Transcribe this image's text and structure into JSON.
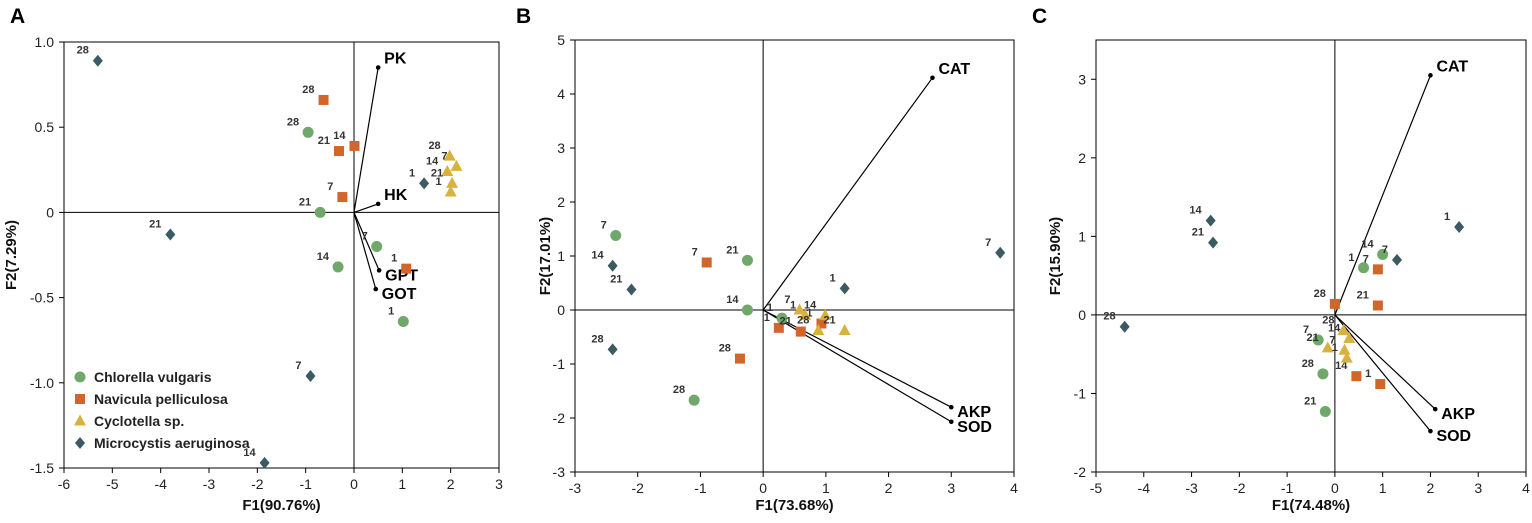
{
  "colors": {
    "Chlorella vulgaris": "#6fa86a",
    "Navicula pelliculosa": "#d2652a",
    "Cyclotella sp.": "#d8b23e",
    "Microcystis aeruginosa": "#3b5a62"
  },
  "legend": [
    {
      "name": "Chlorella vulgaris",
      "marker": "circle"
    },
    {
      "name": "Navicula pelliculosa",
      "marker": "square"
    },
    {
      "name": "Cyclotella sp.",
      "marker": "triangle"
    },
    {
      "name": "Microcystis aeruginosa",
      "marker": "diamond"
    }
  ],
  "chart_data": [
    {
      "panel": "A",
      "type": "scatter",
      "xlabel": "F1(90.76%)",
      "ylabel": "F2(7.29%)",
      "xlim": [
        -6,
        3
      ],
      "ylim": [
        -1.5,
        1.0
      ],
      "xticks": [
        "-6",
        "-5",
        "-4",
        "-3",
        "-2",
        "-1",
        "0",
        "1",
        "2",
        "3"
      ],
      "yticks": [
        "1.0",
        "0.5",
        "0",
        "-0.5",
        "-1.0",
        "-1.5"
      ],
      "vectors": [
        {
          "label": "PK",
          "x": 0.5,
          "y": 0.85
        },
        {
          "label": "HK",
          "x": 0.5,
          "y": 0.05
        },
        {
          "label": "GPT",
          "x": 0.52,
          "y": -0.34
        },
        {
          "label": "GOT",
          "x": 0.45,
          "y": -0.45
        }
      ],
      "series": [
        {
          "name": "Chlorella vulgaris",
          "points": [
            {
              "label": "28",
              "x": -0.95,
              "y": 0.47
            },
            {
              "label": "21",
              "x": -0.7,
              "y": 0.0
            },
            {
              "label": "7",
              "x": 0.47,
              "y": -0.2
            },
            {
              "label": "14",
              "x": -0.33,
              "y": -0.32
            },
            {
              "label": "1",
              "x": 1.02,
              "y": -0.64
            }
          ]
        },
        {
          "name": "Navicula pelliculosa",
          "points": [
            {
              "label": "28",
              "x": -0.63,
              "y": 0.66
            },
            {
              "label": "14",
              "x": 0.01,
              "y": 0.39
            },
            {
              "label": "21",
              "x": -0.31,
              "y": 0.36
            },
            {
              "label": "7",
              "x": -0.24,
              "y": 0.09
            },
            {
              "label": "1",
              "x": 1.08,
              "y": -0.33
            }
          ]
        },
        {
          "name": "Cyclotella sp.",
          "points": [
            {
              "label": "28",
              "x": 1.98,
              "y": 0.33
            },
            {
              "label": "7",
              "x": 2.12,
              "y": 0.27
            },
            {
              "label": "14",
              "x": 1.93,
              "y": 0.24
            },
            {
              "label": "21",
              "x": 2.03,
              "y": 0.17
            },
            {
              "label": "1",
              "x": 2.0,
              "y": 0.12
            }
          ]
        },
        {
          "name": "Microcystis aeruginosa",
          "points": [
            {
              "label": "28",
              "x": -5.3,
              "y": 0.89
            },
            {
              "label": "1",
              "x": 1.45,
              "y": 0.17
            },
            {
              "label": "21",
              "x": -3.8,
              "y": -0.13
            },
            {
              "label": "7",
              "x": -0.9,
              "y": -0.96
            },
            {
              "label": "14",
              "x": -1.85,
              "y": -1.47
            }
          ]
        }
      ]
    },
    {
      "panel": "B",
      "type": "scatter",
      "xlabel": "F1(73.68%)",
      "ylabel": "F2(17.01%)",
      "xlim": [
        -3,
        4
      ],
      "ylim": [
        -3,
        5
      ],
      "xticks": [
        "-3",
        "-2",
        "-1",
        "0",
        "1",
        "2",
        "3",
        "4"
      ],
      "yticks": [
        "5",
        "4",
        "3",
        "2",
        "1",
        "0",
        "-1",
        "-2",
        "-3"
      ],
      "vectors": [
        {
          "label": "CAT",
          "x": 2.7,
          "y": 4.3
        },
        {
          "label": "AKP",
          "x": 3.0,
          "y": -1.8
        },
        {
          "label": "SOD",
          "x": 3.0,
          "y": -2.07
        }
      ],
      "series": [
        {
          "name": "Chlorella vulgaris",
          "points": [
            {
              "label": "7",
              "x": -2.35,
              "y": 1.38
            },
            {
              "label": "21",
              "x": -0.25,
              "y": 0.92
            },
            {
              "label": "14",
              "x": -0.25,
              "y": 0.0
            },
            {
              "label": "1",
              "x": 0.3,
              "y": -0.15
            },
            {
              "label": "28",
              "x": -1.1,
              "y": -1.67
            }
          ]
        },
        {
          "name": "Navicula pelliculosa",
          "points": [
            {
              "label": "7",
              "x": -0.9,
              "y": 0.88
            },
            {
              "label": "1",
              "x": 0.25,
              "y": -0.33
            },
            {
              "label": "21",
              "x": 0.6,
              "y": -0.4
            },
            {
              "label": "1",
              "x": 0.93,
              "y": -0.25
            },
            {
              "label": "28",
              "x": -0.37,
              "y": -0.9
            }
          ]
        },
        {
          "name": "Cyclotella sp.",
          "points": [
            {
              "label": "7",
              "x": 0.58,
              "y": 0.0
            },
            {
              "label": "1",
              "x": 0.67,
              "y": -0.1
            },
            {
              "label": "14",
              "x": 0.99,
              "y": -0.1
            },
            {
              "label": "28",
              "x": 0.88,
              "y": -0.38
            },
            {
              "label": "21",
              "x": 1.3,
              "y": -0.38
            }
          ]
        },
        {
          "name": "Microcystis aeruginosa",
          "points": [
            {
              "label": "14",
              "x": -2.4,
              "y": 0.82
            },
            {
              "label": "21",
              "x": -2.1,
              "y": 0.38
            },
            {
              "label": "1",
              "x": 1.3,
              "y": 0.4
            },
            {
              "label": "7",
              "x": 3.78,
              "y": 1.06
            },
            {
              "label": "28",
              "x": -2.4,
              "y": -0.73
            }
          ]
        }
      ]
    },
    {
      "panel": "C",
      "type": "scatter",
      "xlabel": "F1(74.48%)",
      "ylabel": "F2(15.90%)",
      "xlim": [
        -5,
        4
      ],
      "ylim": [
        -2,
        3.5
      ],
      "xticks": [
        "-5",
        "-4",
        "-3",
        "-2",
        "-1",
        "0",
        "1",
        "2",
        "3",
        "4"
      ],
      "yticks": [
        "3",
        "2",
        "1",
        "0",
        "-1",
        "-2"
      ],
      "vectors": [
        {
          "label": "CAT",
          "x": 2.0,
          "y": 3.05
        },
        {
          "label": "AKP",
          "x": 2.1,
          "y": -1.2
        },
        {
          "label": "SOD",
          "x": 2.0,
          "y": -1.48
        }
      ],
      "series": [
        {
          "name": "Chlorella vulgaris",
          "points": [
            {
              "label": "14",
              "x": 1.0,
              "y": 0.77
            },
            {
              "label": "1",
              "x": 0.6,
              "y": 0.6
            },
            {
              "label": "7",
              "x": -0.35,
              "y": -0.32
            },
            {
              "label": "28",
              "x": -0.25,
              "y": -0.75
            },
            {
              "label": "21",
              "x": -0.2,
              "y": -1.23
            }
          ]
        },
        {
          "name": "Navicula pelliculosa",
          "points": [
            {
              "label": "7",
              "x": 0.9,
              "y": 0.58
            },
            {
              "label": "28",
              "x": 0.0,
              "y": 0.14
            },
            {
              "label": "21",
              "x": 0.9,
              "y": 0.12
            },
            {
              "label": "14",
              "x": 0.45,
              "y": -0.78
            },
            {
              "label": "1",
              "x": 0.95,
              "y": -0.88
            }
          ]
        },
        {
          "name": "Cyclotella sp.",
          "points": [
            {
              "label": "28",
              "x": 0.18,
              "y": -0.2
            },
            {
              "label": "14",
              "x": 0.3,
              "y": -0.3
            },
            {
              "label": "21",
              "x": -0.15,
              "y": -0.42
            },
            {
              "label": "7",
              "x": 0.2,
              "y": -0.45
            },
            {
              "label": "1",
              "x": 0.25,
              "y": -0.55
            }
          ]
        },
        {
          "name": "Microcystis aeruginosa",
          "points": [
            {
              "label": "14",
              "x": -2.6,
              "y": 1.2
            },
            {
              "label": "21",
              "x": -2.55,
              "y": 0.92
            },
            {
              "label": "1",
              "x": 2.6,
              "y": 1.12
            },
            {
              "label": "7",
              "x": 1.3,
              "y": 0.7
            },
            {
              "label": "28",
              "x": -4.4,
              "y": -0.15
            }
          ]
        }
      ]
    }
  ]
}
